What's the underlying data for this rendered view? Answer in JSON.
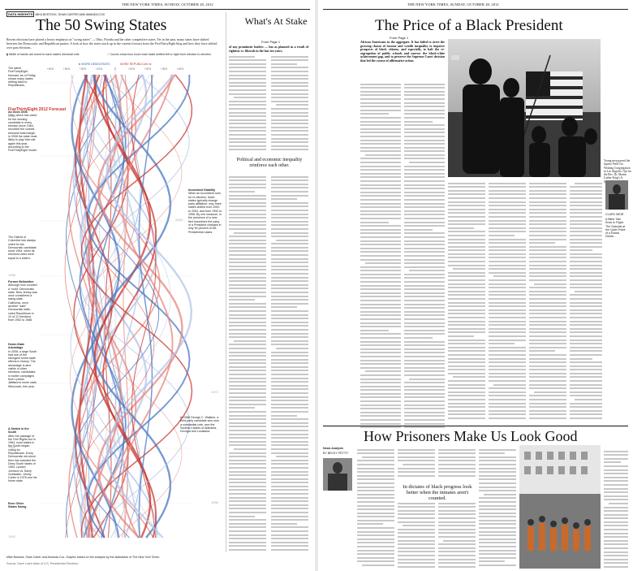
{
  "left_page": {
    "folio": "THE NEW YORK TIMES, SUNDAY, OCTOBER 28, 2012",
    "byline_tag": "DATA INSIGHTS",
    "byline_names": "MIKA BOSTOCK, SHAN CARTER AND AMANDA COX",
    "headline": "The 50 Swing States",
    "dek": "Recent elections have placed a heavy emphasis on \"swing states\" — Ohio, Florida and the other competitive states. Yet in the past, many states have shifted between the Democratic and Republican parties. A look at how the states stack up in the current forecast from the FiveThirtyEight blog and how they have shifted over past elections.",
    "legend_left": "Width of bands are tuned to each state's electoral vote",
    "legend_right": "Curves show how much each state shifted left or right from election to election",
    "axis_more_dem": "◄ MORE DEMOCRATIC",
    "axis_more_rep": "MORE REPUBLICAN ►",
    "forecast_title": "FiveThirtyEight 2012 Forecast",
    "forecast_note": "The latest FiveThirtyEight forecast, as of Friday, shows many states drifting back to Republicans.",
    "year_2008": "2008",
    "year_2000": "2000",
    "year_1988": "1988",
    "year_1976": "1976",
    "year_1972": "1972",
    "year_1964": "1964",
    "year_1956": "1956",
    "year_1952": "1952",
    "note_ohio_title": "As Goes Ohio",
    "note_ohio": "Ohio, which has voted for the winning candidate in every election since 1964, recorded the closest electoral total margin in 2008 the state most likely to play that role again this year, according to the FiveThirtyEight model.",
    "note_incumbent_title": "Incumbent Stability",
    "note_incumbent": "When an incumbent runs for re-election, fewer states typically change party affiliation: only three states shifted from 2000 to 2004, and from 1992 to 1996. By one measure, in the presence of a new, tied incumbent the party of a President changes in only 50 percent of the Presidential cases.",
    "note_district_title": "",
    "note_district": "The District of Columbia has always voted for the Democratic candidate since 1964, when its electoral votes were equal to a state's.",
    "note_perpetual_title": "Former Bellwether",
    "note_perpetual": "Although now counted a \"solid\" Democratic state, New Jersey was once considered a swing state. California, once another \"safe\" Democratic state, voted Republican in 10 of 12 elections from 1952 to 1988.",
    "note_rosy_title": "Home-State Advantage",
    "note_rosy": "In 2008, a large South had one of the strongest home-state effects in history. The advantage is also visible in other elections: candidates in earlier campaigns from Lyndon Johnson's home state, Wisconsin, this year.",
    "note_1972": "In 1968 George C. Wallace, a third-party candidate who won a substantial vote, won the Southern states of Alabama, Georgia and Louisiana.",
    "note_switch_title": "A Switch in the South",
    "note_switch": "After the passage of the Civil Rights Act in 1964, most states in the South began voting for Republicans. Every Democratic win since then has included the Deep South states of 1964: Lyndon Johnson vs. Barry Goldwater, Jimmy Carter in 1976 and his home state.",
    "note_swing_title": "Even Other States Swing",
    "source": "Mike Bostock, Shan Carter and Amanda Cox. Graphic based on the analysis by the statistician of The New York Times.",
    "credit": "Source: Dave Leip's Atlas of U.S. Presidential Elections",
    "side_head": "What's At Stake",
    "side_byline": "From Page 1",
    "side_subhead": "Political and economic inequality reinforce each other.",
    "side_col_intro": "of any prominent leaders — has as planned as a result of rightists vs. liberals in the last ten years."
  },
  "right_page": {
    "folio": "THE NEW YORK TIMES, SUNDAY, OCTOBER 28, 2012",
    "headline1": "The Price of a Black President",
    "byline1": "From Page 1",
    "pull_intro": "African Americans in the aggregate. It has failed to avert the growing chasm of income and wealth inequality to improve prospects of black citizens, and especially, to halt the re-segregation of public schools and narrow the black-white achievement gap, and to preserve the Supreme Court decision that led the course of affirmative action.",
    "photo_caption": "Young men passed the Jupiter Field Tot Wishing Congregation in Los Angeles. Opt for the Rev. Dr. Martin Luther King's Jr. March, 1963.",
    "photo_credit_note": "Photo: The New York Times",
    "headline2": "How Prisoners Make Us Look Good",
    "byline2": "By BECKY PETTIT",
    "analysis_label": "News Analysis",
    "author_label": "BY BECKY PETTIT",
    "subhead2": "In dictates of black progress look better when the inmates aren't counted.",
    "side_caption": "A Bitter Tale Ends in Flight. The Scandal at the Quiet Pulse of a Racial Divide...",
    "side_name": "CLARK WEIR",
    "side_name2": "Carl, A. Bolton"
  }
}
